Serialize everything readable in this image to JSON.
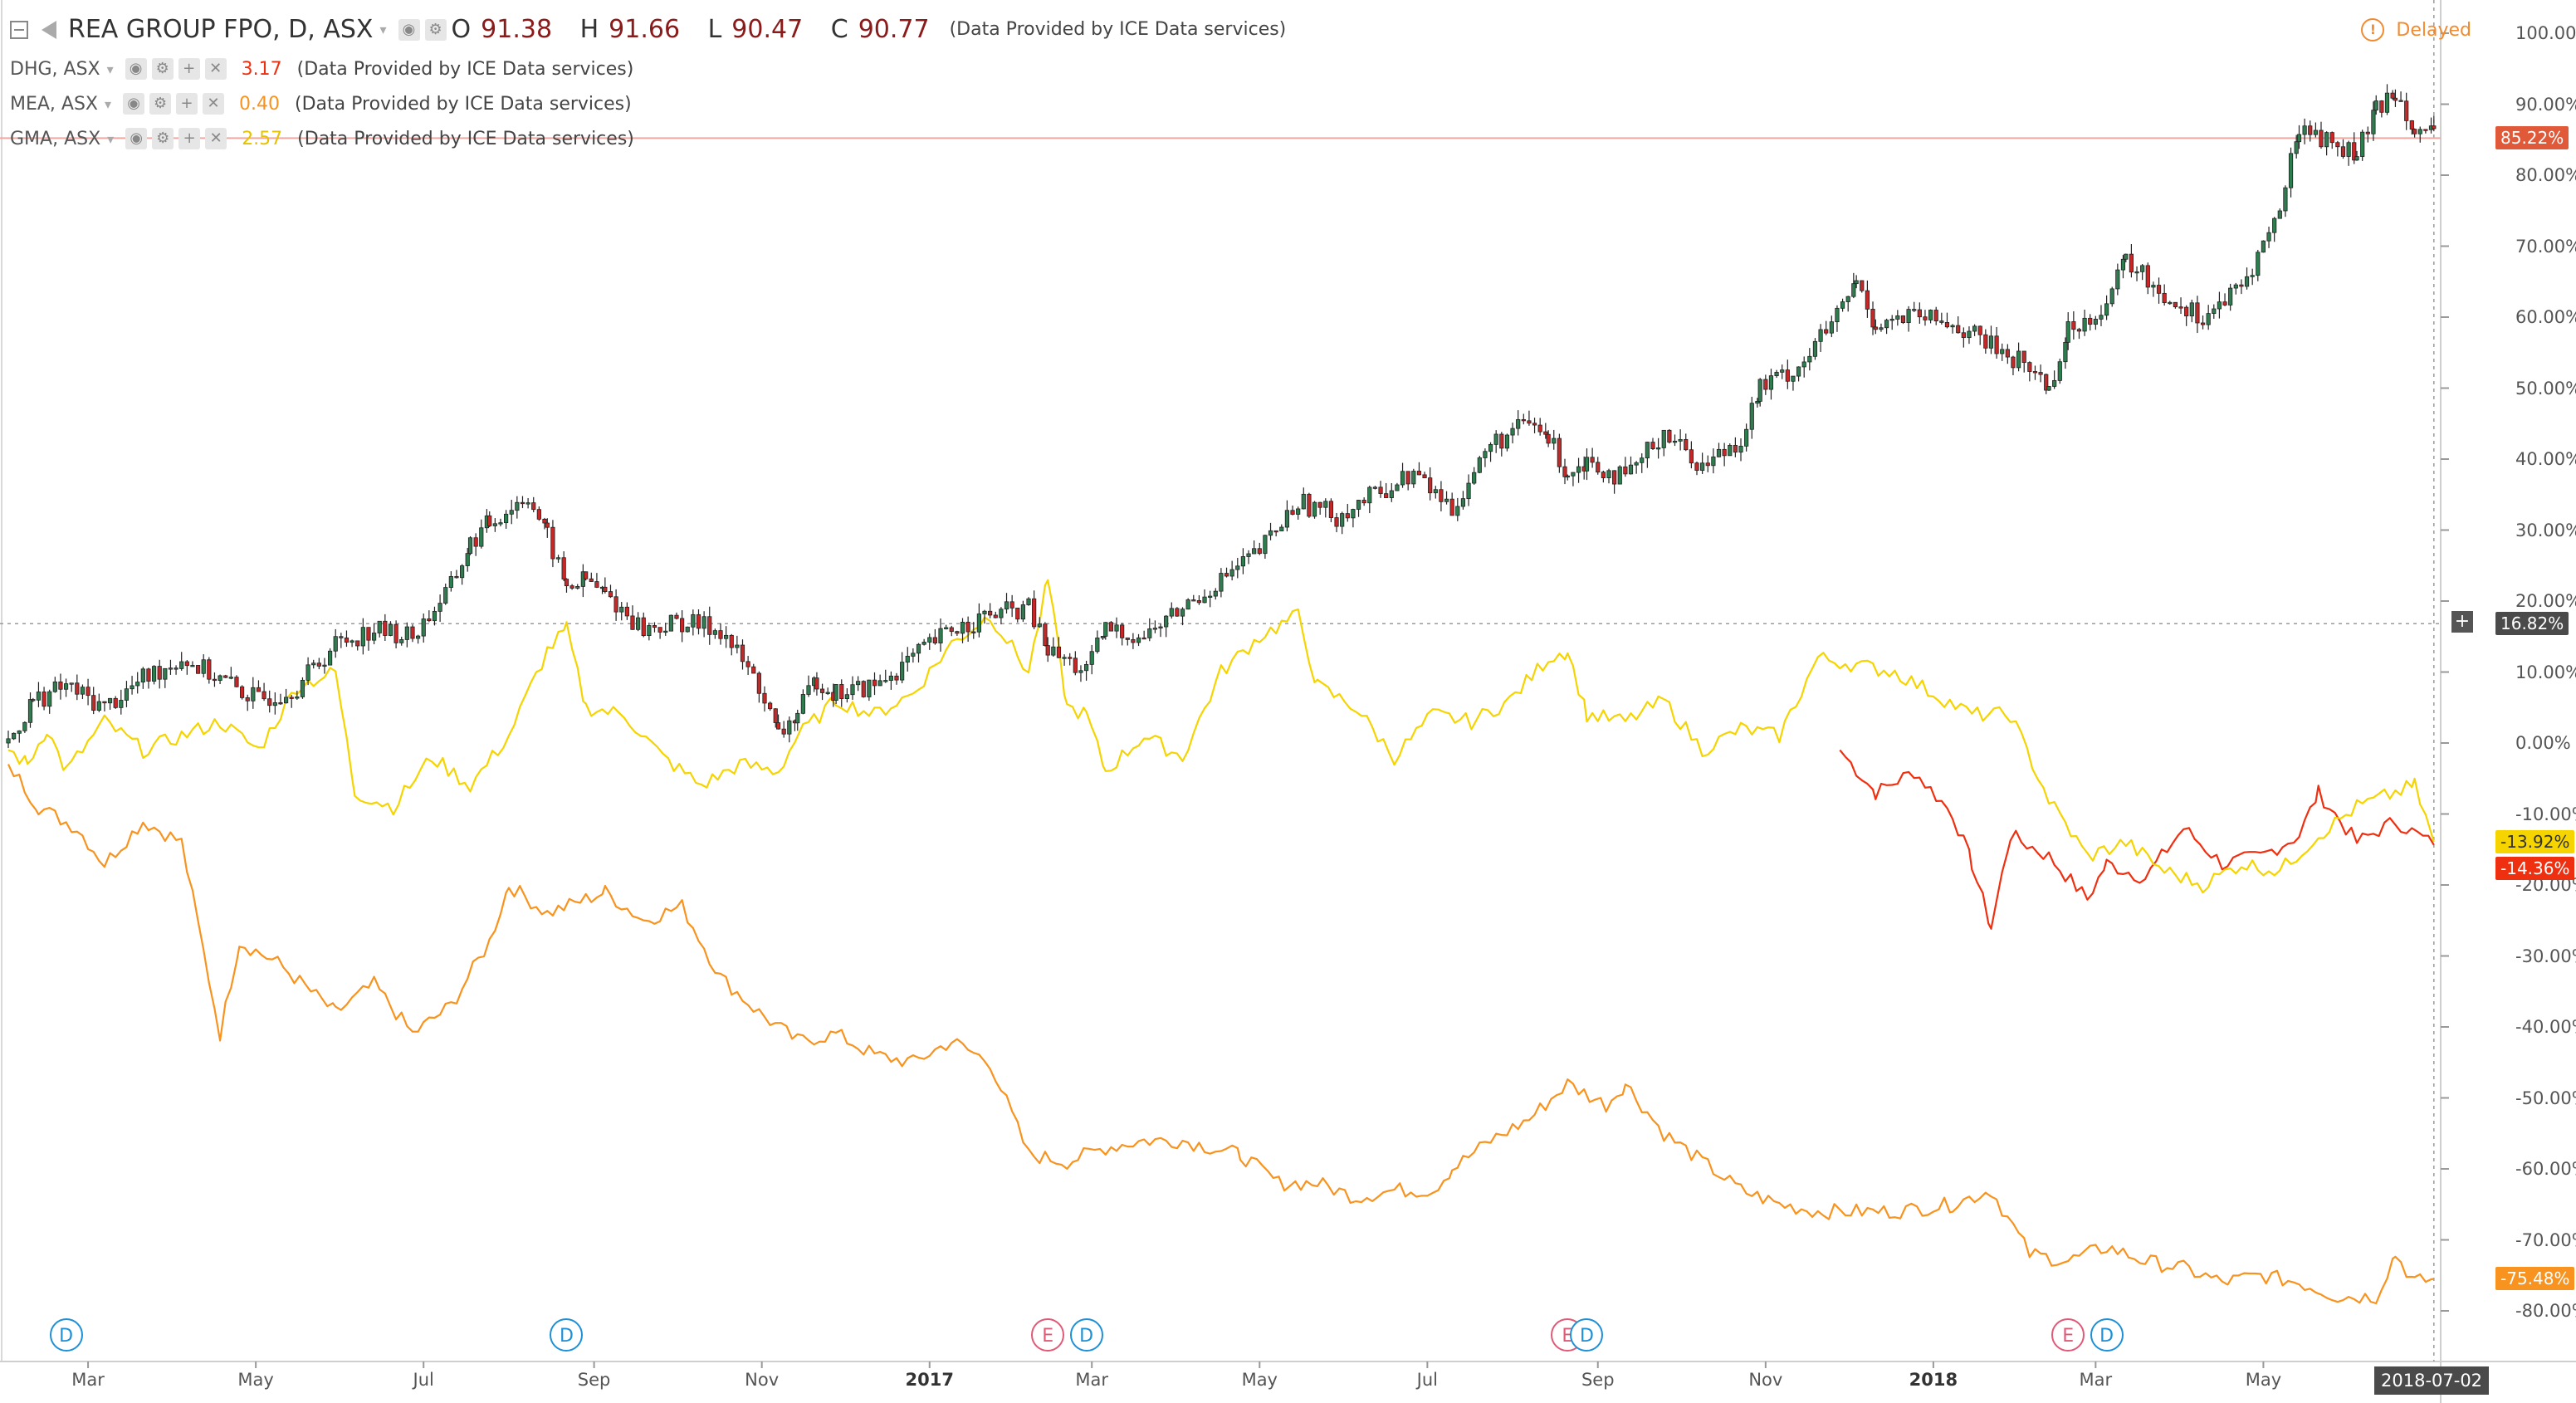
{
  "legend": {
    "main": {
      "symbol": "REA GROUP FPO, D, ASX",
      "o_label": "O",
      "o_value": "91.38",
      "h_label": "H",
      "h_value": "91.66",
      "l_label": "L",
      "l_value": "90.47",
      "c_label": "C",
      "c_value": "90.77",
      "provider": "(Data Provided by ICE Data services)"
    },
    "compare": [
      {
        "symbol": "DHG, ASX",
        "value": "3.17",
        "color": "#ee2f10",
        "provider": "(Data Provided by ICE Data services)"
      },
      {
        "symbol": "MEA, ASX",
        "value": "0.40",
        "color": "#f7931e",
        "provider": "(Data Provided by ICE Data services)"
      },
      {
        "symbol": "GMA, ASX",
        "value": "2.57",
        "color": "#f5d400",
        "provider": "(Data Provided by ICE Data services)"
      }
    ]
  },
  "status": {
    "delayed_label": "Delayed",
    "icon": "alert-circle-icon"
  },
  "price_tags": {
    "rea": {
      "label": "85.22%",
      "color": "#e05a3a"
    },
    "cursor": {
      "label": "16.82%",
      "color": "#4a4a4a"
    },
    "gma": {
      "label": "-13.92%",
      "color": "#f5d400"
    },
    "dhg": {
      "label": "-14.36%",
      "color": "#ee2f10"
    },
    "mea": {
      "label": "-75.48%",
      "color": "#f7931e"
    }
  },
  "x_axis": {
    "ticks": [
      {
        "label": "Mar",
        "bold": false
      },
      {
        "label": "May",
        "bold": false
      },
      {
        "label": "Jul",
        "bold": false
      },
      {
        "label": "Sep",
        "bold": false
      },
      {
        "label": "Nov",
        "bold": false
      },
      {
        "label": "2017",
        "bold": true
      },
      {
        "label": "Mar",
        "bold": false
      },
      {
        "label": "May",
        "bold": false
      },
      {
        "label": "Jul",
        "bold": false
      },
      {
        "label": "Sep",
        "bold": false
      },
      {
        "label": "Nov",
        "bold": false
      },
      {
        "label": "2018",
        "bold": true
      },
      {
        "label": "Mar",
        "bold": false
      },
      {
        "label": "May",
        "bold": false
      }
    ],
    "current_date": "2018-07-02"
  },
  "y_axis": {
    "ticks": [
      "100.00%",
      "90.00%",
      "80.00%",
      "70.00%",
      "60.00%",
      "50.00%",
      "40.00%",
      "30.00%",
      "20.00%",
      "10.00%",
      "0.00%",
      "-10.00%",
      "-20.00%",
      "-30.00%",
      "-40.00%",
      "-50.00%",
      "-60.00%",
      "-70.00%",
      "-80.00%"
    ]
  },
  "events": [
    "D",
    "D",
    "E",
    "D",
    "E",
    "D",
    "E",
    "D"
  ],
  "chart_data": {
    "type": "line",
    "scale": "percent",
    "ylim": [
      -85,
      103
    ],
    "x_range": [
      "2016-02-01",
      "2018-07-09"
    ],
    "series": [
      {
        "name": "REA GROUP FPO, D, ASX",
        "style": "candlestick",
        "up_color": "#2e7d4f",
        "down_color": "#c62828",
        "points": [
          [
            "2016-02-01",
            0
          ],
          [
            "2016-02-10",
            6
          ],
          [
            "2016-02-22",
            8
          ],
          [
            "2016-03-07",
            5
          ],
          [
            "2016-03-21",
            9
          ],
          [
            "2016-04-04",
            12
          ],
          [
            "2016-04-18",
            9
          ],
          [
            "2016-05-02",
            6
          ],
          [
            "2016-05-16",
            8
          ],
          [
            "2016-05-30",
            14
          ],
          [
            "2016-06-13",
            16
          ],
          [
            "2016-06-27",
            15
          ],
          [
            "2016-07-11",
            22
          ],
          [
            "2016-07-18",
            28
          ],
          [
            "2016-07-25",
            31
          ],
          [
            "2016-08-08",
            35
          ],
          [
            "2016-08-15",
            29
          ],
          [
            "2016-08-22",
            22
          ],
          [
            "2016-08-29",
            23
          ],
          [
            "2016-09-05",
            21
          ],
          [
            "2016-09-19",
            16
          ],
          [
            "2016-10-03",
            17
          ],
          [
            "2016-10-17",
            16
          ],
          [
            "2016-10-31",
            8
          ],
          [
            "2016-11-07",
            1
          ],
          [
            "2016-11-14",
            4
          ],
          [
            "2016-11-21",
            9
          ],
          [
            "2016-11-28",
            7
          ],
          [
            "2016-12-12",
            8
          ],
          [
            "2016-12-26",
            12
          ],
          [
            "2017-01-09",
            16
          ],
          [
            "2017-01-23",
            18
          ],
          [
            "2017-02-06",
            19
          ],
          [
            "2017-02-13",
            13
          ],
          [
            "2017-02-27",
            10
          ],
          [
            "2017-03-06",
            16
          ],
          [
            "2017-03-20",
            15
          ],
          [
            "2017-04-03",
            19
          ],
          [
            "2017-04-17",
            23
          ],
          [
            "2017-05-01",
            27
          ],
          [
            "2017-05-15",
            34
          ],
          [
            "2017-05-29",
            32
          ],
          [
            "2017-06-12",
            35
          ],
          [
            "2017-06-26",
            38
          ],
          [
            "2017-07-10",
            33
          ],
          [
            "2017-07-24",
            42
          ],
          [
            "2017-08-07",
            45
          ],
          [
            "2017-08-14",
            43
          ],
          [
            "2017-08-21",
            38
          ],
          [
            "2017-08-28",
            40
          ],
          [
            "2017-09-11",
            37
          ],
          [
            "2017-09-25",
            44
          ],
          [
            "2017-10-09",
            39
          ],
          [
            "2017-10-23",
            43
          ],
          [
            "2017-10-30",
            50
          ],
          [
            "2017-11-13",
            53
          ],
          [
            "2017-11-27",
            60
          ],
          [
            "2017-12-04",
            65
          ],
          [
            "2017-12-11",
            59
          ],
          [
            "2017-12-25",
            60
          ],
          [
            "2018-01-08",
            59
          ],
          [
            "2018-01-22",
            56
          ],
          [
            "2018-02-05",
            53
          ],
          [
            "2018-02-12",
            50
          ],
          [
            "2018-02-19",
            58
          ],
          [
            "2018-03-05",
            62
          ],
          [
            "2018-03-12",
            68
          ],
          [
            "2018-03-26",
            63
          ],
          [
            "2018-04-09",
            60
          ],
          [
            "2018-04-23",
            64
          ],
          [
            "2018-05-07",
            75
          ],
          [
            "2018-05-14",
            87
          ],
          [
            "2018-05-28",
            84
          ],
          [
            "2018-06-04",
            83
          ],
          [
            "2018-06-11",
            89
          ],
          [
            "2018-06-18",
            92
          ],
          [
            "2018-06-25",
            87
          ],
          [
            "2018-07-02",
            85.22
          ]
        ]
      },
      {
        "name": "DHG, ASX",
        "color": "#ee2f10",
        "points": [
          [
            "2017-11-28",
            -1
          ],
          [
            "2017-12-11",
            -7
          ],
          [
            "2017-12-25",
            -4
          ],
          [
            "2018-01-08",
            -10
          ],
          [
            "2018-01-15",
            -17
          ],
          [
            "2018-01-22",
            -26
          ],
          [
            "2018-01-29",
            -13
          ],
          [
            "2018-02-12",
            -16
          ],
          [
            "2018-02-26",
            -22
          ],
          [
            "2018-03-05",
            -17
          ],
          [
            "2018-03-19",
            -19
          ],
          [
            "2018-04-02",
            -12
          ],
          [
            "2018-04-16",
            -17
          ],
          [
            "2018-04-30",
            -16
          ],
          [
            "2018-05-14",
            -13
          ],
          [
            "2018-05-21",
            -7
          ],
          [
            "2018-06-04",
            -14
          ],
          [
            "2018-06-18",
            -11
          ],
          [
            "2018-07-02",
            -14.36
          ]
        ]
      },
      {
        "name": "MEA, ASX",
        "color": "#f7931e",
        "points": [
          [
            "2016-02-01",
            -3
          ],
          [
            "2016-02-12",
            -9
          ],
          [
            "2016-02-26",
            -12
          ],
          [
            "2016-03-07",
            -17
          ],
          [
            "2016-03-21",
            -11
          ],
          [
            "2016-04-04",
            -14
          ],
          [
            "2016-04-18",
            -41
          ],
          [
            "2016-04-25",
            -28
          ],
          [
            "2016-05-09",
            -31
          ],
          [
            "2016-05-30",
            -38
          ],
          [
            "2016-06-13",
            -34
          ],
          [
            "2016-06-27",
            -41
          ],
          [
            "2016-07-11",
            -37
          ],
          [
            "2016-07-25",
            -28
          ],
          [
            "2016-08-01",
            -20
          ],
          [
            "2016-08-15",
            -24
          ],
          [
            "2016-08-29",
            -22
          ],
          [
            "2016-09-05",
            -21
          ],
          [
            "2016-09-19",
            -25
          ],
          [
            "2016-10-03",
            -23
          ],
          [
            "2016-10-17",
            -33
          ],
          [
            "2016-10-31",
            -38
          ],
          [
            "2016-11-14",
            -42
          ],
          [
            "2016-11-28",
            -41
          ],
          [
            "2016-12-12",
            -44
          ],
          [
            "2016-12-26",
            -45
          ],
          [
            "2017-01-09",
            -42
          ],
          [
            "2017-01-23",
            -45
          ],
          [
            "2017-02-06",
            -58
          ],
          [
            "2017-02-20",
            -59
          ],
          [
            "2017-03-06",
            -57
          ],
          [
            "2017-03-20",
            -56
          ],
          [
            "2017-04-03",
            -56
          ],
          [
            "2017-04-24",
            -58
          ],
          [
            "2017-05-08",
            -62
          ],
          [
            "2017-05-22",
            -62
          ],
          [
            "2017-06-05",
            -64
          ],
          [
            "2017-06-19",
            -63
          ],
          [
            "2017-07-03",
            -63
          ],
          [
            "2017-07-10",
            -60
          ],
          [
            "2017-07-24",
            -56
          ],
          [
            "2017-08-07",
            -53
          ],
          [
            "2017-08-21",
            -48
          ],
          [
            "2017-09-04",
            -51
          ],
          [
            "2017-09-11",
            -48
          ],
          [
            "2017-09-25",
            -55
          ],
          [
            "2017-10-09",
            -59
          ],
          [
            "2017-10-23",
            -63
          ],
          [
            "2017-11-06",
            -65
          ],
          [
            "2017-11-20",
            -66
          ],
          [
            "2017-12-04",
            -66
          ],
          [
            "2017-12-18",
            -66
          ],
          [
            "2018-01-08",
            -65
          ],
          [
            "2018-01-22",
            -63
          ],
          [
            "2018-02-05",
            -72
          ],
          [
            "2018-02-19",
            -73
          ],
          [
            "2018-03-05",
            -71
          ],
          [
            "2018-03-19",
            -73
          ],
          [
            "2018-04-02",
            -74
          ],
          [
            "2018-04-16",
            -76
          ],
          [
            "2018-04-30",
            -75
          ],
          [
            "2018-05-14",
            -76
          ],
          [
            "2018-05-28",
            -78
          ],
          [
            "2018-06-11",
            -78
          ],
          [
            "2018-06-18",
            -72
          ],
          [
            "2018-06-25",
            -76
          ],
          [
            "2018-07-02",
            -75.48
          ]
        ]
      },
      {
        "name": "GMA, ASX",
        "color": "#f5d400",
        "points": [
          [
            "2016-02-01",
            -1
          ],
          [
            "2016-02-08",
            -3
          ],
          [
            "2016-02-15",
            2
          ],
          [
            "2016-02-22",
            -4
          ],
          [
            "2016-03-07",
            3
          ],
          [
            "2016-03-21",
            -1
          ],
          [
            "2016-04-04",
            1
          ],
          [
            "2016-04-18",
            3
          ],
          [
            "2016-05-02",
            -1
          ],
          [
            "2016-05-16",
            8
          ],
          [
            "2016-05-30",
            10
          ],
          [
            "2016-06-06",
            -7
          ],
          [
            "2016-06-20",
            -9
          ],
          [
            "2016-07-04",
            -2
          ],
          [
            "2016-07-18",
            -6
          ],
          [
            "2016-08-01",
            1
          ],
          [
            "2016-08-15",
            13
          ],
          [
            "2016-08-22",
            16
          ],
          [
            "2016-08-29",
            5
          ],
          [
            "2016-09-12",
            4
          ],
          [
            "2016-09-26",
            -2
          ],
          [
            "2016-10-10",
            -6
          ],
          [
            "2016-10-24",
            -3
          ],
          [
            "2016-11-07",
            -4
          ],
          [
            "2016-11-14",
            1
          ],
          [
            "2016-11-28",
            6
          ],
          [
            "2016-12-12",
            4
          ],
          [
            "2016-12-26",
            7
          ],
          [
            "2017-01-09",
            14
          ],
          [
            "2017-01-23",
            18
          ],
          [
            "2017-02-06",
            10
          ],
          [
            "2017-02-13",
            23
          ],
          [
            "2017-02-20",
            5
          ],
          [
            "2017-02-27",
            4
          ],
          [
            "2017-03-06",
            -4
          ],
          [
            "2017-03-20",
            1
          ],
          [
            "2017-04-03",
            -2
          ],
          [
            "2017-04-17",
            10
          ],
          [
            "2017-05-01",
            15
          ],
          [
            "2017-05-15",
            18
          ],
          [
            "2017-05-22",
            8
          ],
          [
            "2017-06-05",
            5
          ],
          [
            "2017-06-19",
            -2
          ],
          [
            "2017-07-03",
            4
          ],
          [
            "2017-07-17",
            3
          ],
          [
            "2017-07-31",
            6
          ],
          [
            "2017-08-14",
            12
          ],
          [
            "2017-08-21",
            13
          ],
          [
            "2017-08-28",
            4
          ],
          [
            "2017-09-11",
            3
          ],
          [
            "2017-09-25",
            6
          ],
          [
            "2017-10-09",
            -1
          ],
          [
            "2017-10-23",
            2
          ],
          [
            "2017-11-06",
            1
          ],
          [
            "2017-11-20",
            12
          ],
          [
            "2017-12-04",
            11
          ],
          [
            "2017-12-18",
            10
          ],
          [
            "2018-01-01",
            7
          ],
          [
            "2018-01-15",
            4
          ],
          [
            "2018-01-29",
            4
          ],
          [
            "2018-02-12",
            -8
          ],
          [
            "2018-02-26",
            -16
          ],
          [
            "2018-03-12",
            -14
          ],
          [
            "2018-03-26",
            -18
          ],
          [
            "2018-04-09",
            -20
          ],
          [
            "2018-04-23",
            -17
          ],
          [
            "2018-05-07",
            -18
          ],
          [
            "2018-05-21",
            -13
          ],
          [
            "2018-06-04",
            -9
          ],
          [
            "2018-06-18",
            -7
          ],
          [
            "2018-06-25",
            -6
          ],
          [
            "2018-07-02",
            -13.92
          ]
        ]
      }
    ],
    "crosshair_value": 16.82,
    "grid": true,
    "legend_position": "top-left"
  }
}
